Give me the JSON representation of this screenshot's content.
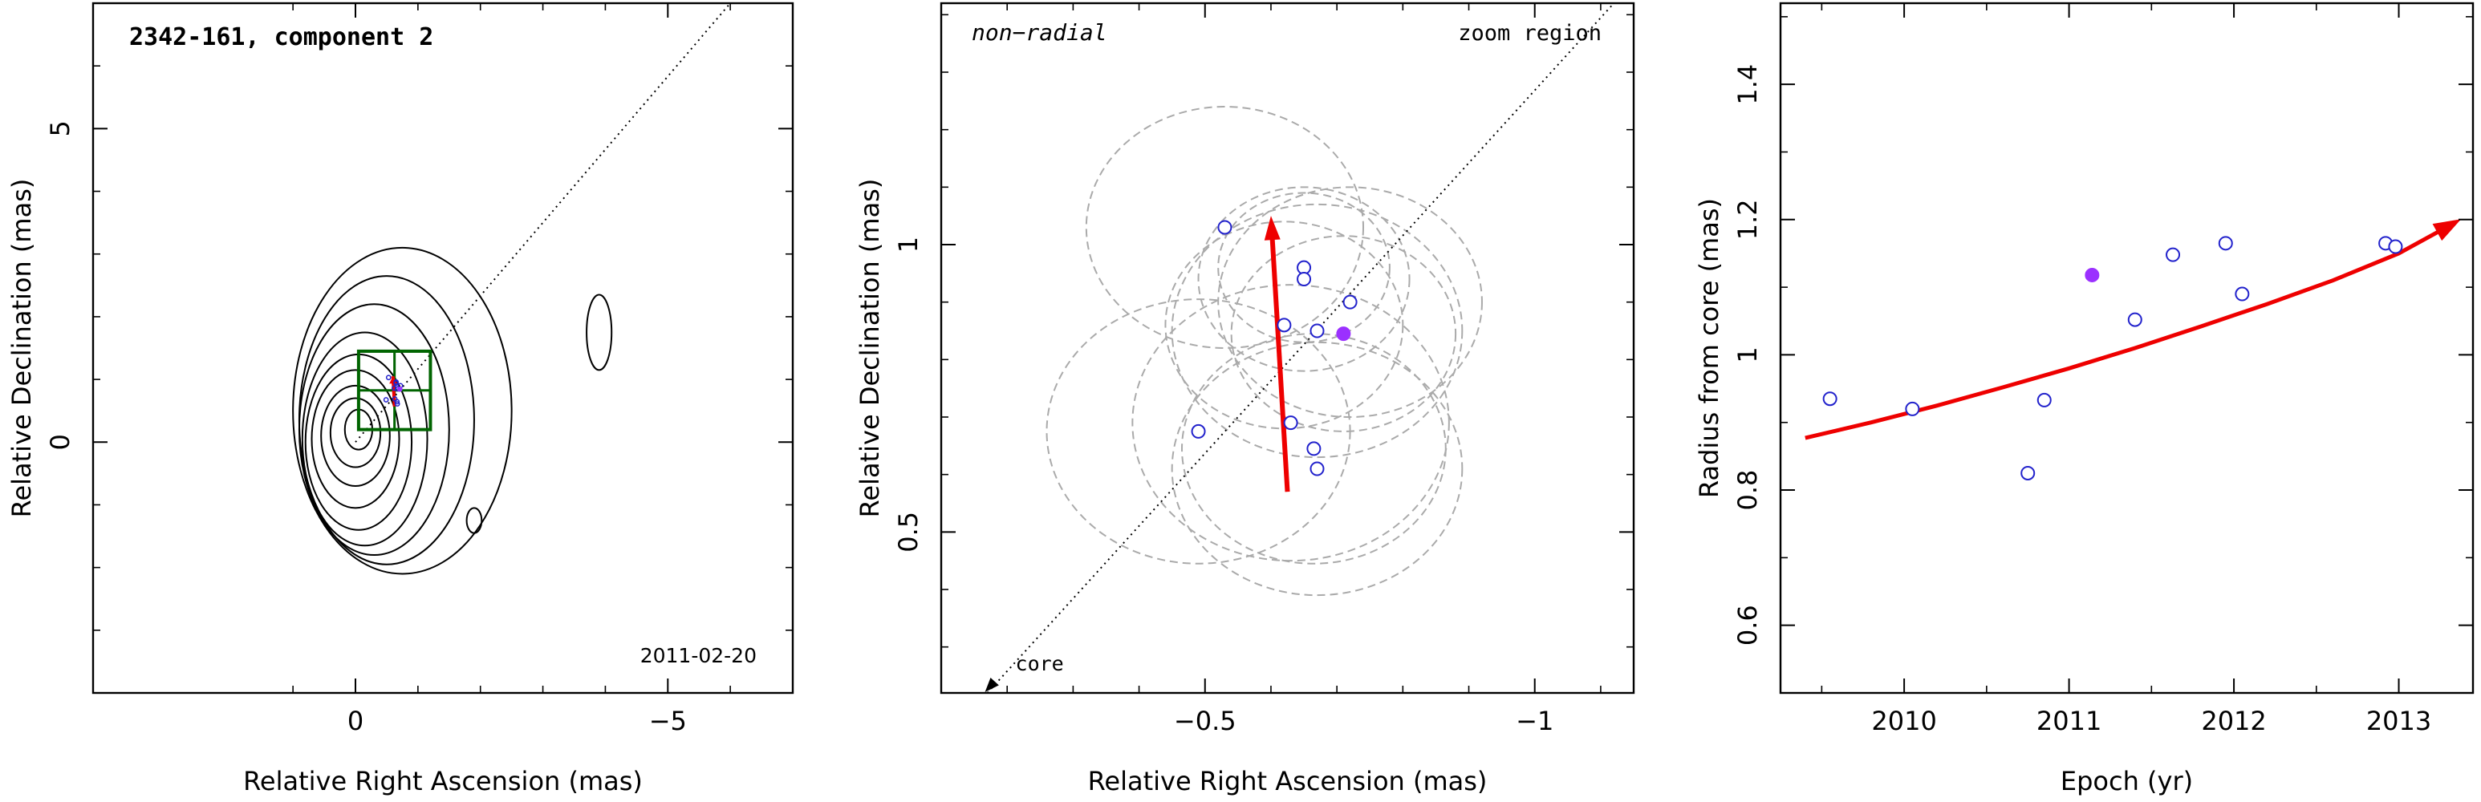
{
  "chart_data": [
    {
      "type": "contour",
      "title": "2342-161, component 2",
      "date_label": "2011-02-20",
      "xlabel": "Relative Right Ascension (mas)",
      "ylabel": "Relative Declination (mas)",
      "xlim": [
        4.2,
        -7.0
      ],
      "ylim": [
        -4.0,
        7.0
      ],
      "xticks": [
        0,
        -5
      ],
      "yticks": [
        0,
        5
      ],
      "contours": [
        {
          "cx": -0.05,
          "cy": 0.2,
          "rx": 0.22,
          "ry": 0.32
        },
        {
          "cx": 0.0,
          "cy": 0.15,
          "rx": 0.4,
          "ry": 0.55
        },
        {
          "cx": 0.0,
          "cy": 0.1,
          "rx": 0.55,
          "ry": 0.8
        },
        {
          "cx": 0.0,
          "cy": 0.05,
          "rx": 0.7,
          "ry": 1.1
        },
        {
          "cx": -0.05,
          "cy": 0.0,
          "rx": 0.85,
          "ry": 1.4
        },
        {
          "cx": -0.15,
          "cy": 0.05,
          "rx": 1.0,
          "ry": 1.7
        },
        {
          "cx": -0.3,
          "cy": 0.2,
          "rx": 1.2,
          "ry": 2.0
        },
        {
          "cx": -0.5,
          "cy": 0.35,
          "rx": 1.4,
          "ry": 2.3
        },
        {
          "cx": -0.75,
          "cy": 0.5,
          "rx": 1.75,
          "ry": 2.6
        }
      ],
      "extra_contours": [
        {
          "cx": -3.9,
          "cy": 1.75,
          "rx": 0.2,
          "ry": 0.6
        },
        {
          "cx": -1.9,
          "cy": -1.25,
          "rx": 0.12,
          "ry": 0.2
        }
      ],
      "zoom_box": {
        "x0": -0.05,
        "x1": -1.2,
        "y0": 0.2,
        "y1": 1.45
      },
      "radial_line": {
        "x0": 0.0,
        "y0": 0.0,
        "x1": -6.0,
        "y1": 7.0
      }
    },
    {
      "type": "scatter",
      "title": "non−radial",
      "annotation": "zoom region",
      "core_label": "core",
      "xlabel": "Relative Right Ascension (mas)",
      "ylabel": "Relative Declination (mas)",
      "xlim": [
        -0.1,
        -1.15
      ],
      "ylim": [
        0.22,
        1.42
      ],
      "xticks": [
        -0.5,
        -1
      ],
      "xtick_labels": [
        "−0.5",
        "−1"
      ],
      "yticks": [
        0.5,
        1
      ],
      "ytick_labels": [
        "0.5",
        "1"
      ],
      "points": [
        {
          "x": -0.53,
          "y": 1.03,
          "filled": false
        },
        {
          "x": -0.65,
          "y": 0.96,
          "filled": false
        },
        {
          "x": -0.65,
          "y": 0.94,
          "filled": false
        },
        {
          "x": -0.72,
          "y": 0.9,
          "filled": false
        },
        {
          "x": -0.62,
          "y": 0.86,
          "filled": false
        },
        {
          "x": -0.67,
          "y": 0.85,
          "filled": false
        },
        {
          "x": -0.71,
          "y": 0.845,
          "filled": true
        },
        {
          "x": -0.49,
          "y": 0.675,
          "filled": false
        },
        {
          "x": -0.63,
          "y": 0.69,
          "filled": false
        },
        {
          "x": -0.665,
          "y": 0.645,
          "filled": false
        },
        {
          "x": -0.67,
          "y": 0.61,
          "filled": false
        }
      ],
      "circles": [
        {
          "x": -0.53,
          "y": 1.03,
          "r": 0.21
        },
        {
          "x": -0.65,
          "y": 0.96,
          "r": 0.13
        },
        {
          "x": -0.65,
          "y": 0.94,
          "r": 0.16
        },
        {
          "x": -0.72,
          "y": 0.9,
          "r": 0.2
        },
        {
          "x": -0.62,
          "y": 0.86,
          "r": 0.18
        },
        {
          "x": -0.67,
          "y": 0.85,
          "r": 0.22
        },
        {
          "x": -0.71,
          "y": 0.845,
          "r": 0.17
        },
        {
          "x": -0.49,
          "y": 0.675,
          "r": 0.23
        },
        {
          "x": -0.63,
          "y": 0.69,
          "r": 0.24
        },
        {
          "x": -0.665,
          "y": 0.645,
          "r": 0.2
        },
        {
          "x": -0.67,
          "y": 0.61,
          "r": 0.22
        }
      ],
      "arrow": {
        "x0": -0.625,
        "y0": 0.57,
        "x1": -0.6,
        "y1": 1.05
      },
      "radial_line": {
        "x0": -0.17,
        "y0": 0.22,
        "x1": -1.12,
        "y1": 1.42
      }
    },
    {
      "type": "scatter",
      "xlabel": "Epoch (yr)",
      "ylabel": "Radius from core (mas)",
      "xlim": [
        2009.25,
        2013.45
      ],
      "ylim": [
        0.5,
        1.52
      ],
      "xticks": [
        2010,
        2011,
        2012,
        2013
      ],
      "xtick_labels": [
        "2010",
        "2011",
        "2012",
        "2013"
      ],
      "yticks": [
        0.6,
        0.8,
        1.0,
        1.2,
        1.4
      ],
      "ytick_labels": [
        "0.6",
        "0.8",
        "1",
        "1.2",
        "1.4"
      ],
      "points": [
        {
          "x": 2009.55,
          "y": 0.935,
          "filled": false
        },
        {
          "x": 2010.05,
          "y": 0.92,
          "filled": false
        },
        {
          "x": 2010.75,
          "y": 0.825,
          "filled": false
        },
        {
          "x": 2010.85,
          "y": 0.933,
          "filled": false
        },
        {
          "x": 2011.14,
          "y": 1.118,
          "filled": true
        },
        {
          "x": 2011.4,
          "y": 1.052,
          "filled": false
        },
        {
          "x": 2011.63,
          "y": 1.148,
          "filled": false
        },
        {
          "x": 2011.95,
          "y": 1.165,
          "filled": false
        },
        {
          "x": 2012.05,
          "y": 1.09,
          "filled": false
        },
        {
          "x": 2012.92,
          "y": 1.165,
          "filled": false
        },
        {
          "x": 2012.98,
          "y": 1.16,
          "filled": false
        }
      ],
      "fit_curve": {
        "x": [
          2009.4,
          2009.8,
          2010.2,
          2010.6,
          2011.0,
          2011.4,
          2011.8,
          2012.2,
          2012.6,
          2013.0,
          2013.3
        ],
        "y": [
          0.877,
          0.9,
          0.925,
          0.952,
          0.98,
          1.01,
          1.042,
          1.075,
          1.11,
          1.15,
          1.19
        ]
      }
    }
  ],
  "colors": {
    "open_marker": "#2222cc",
    "filled_marker": "#9b30ff",
    "fit_arrow": "#ee0000",
    "zoom_box": "#006400",
    "dashed_circles": "#aaaaaa"
  }
}
